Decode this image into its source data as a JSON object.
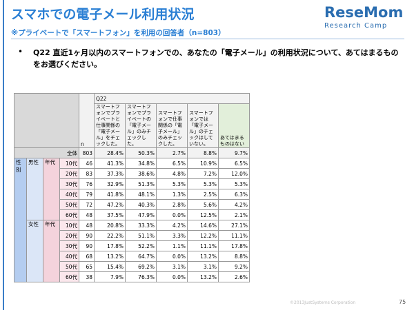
{
  "header": {
    "title": "スマホでの電子メール利用状況",
    "subtitle": "※プライベートで「スマートフォン」を利用の回答者（n=803）",
    "logo_main": "ResеMom",
    "logo_sub": "Research Camp"
  },
  "question": "Q22 直近1ヶ月以内のスマートフォンでの、あなたの「電子メール」の利用状況について、あてはまるものをお選びください。",
  "table": {
    "q_label": "Q22",
    "n_label": "n",
    "columns": [
      "スマートフォンでプライベートと仕事関係の「電子メール」をチェックした。",
      "スマートフォンでプライベートの「電子メール」のみチェックした。",
      "スマートフォンで仕事関係の「電子メール」のみチェックした。",
      "スマートフォンでは「電子メール」のチェックはしていない。",
      "あてはまるものはない"
    ],
    "total": [
      "全体",
      "803",
      "28.4%",
      "50.3%",
      "2.7%",
      "8.8%",
      "9.7%"
    ],
    "sex_label": "性別",
    "groups": [
      {
        "gender": "男性",
        "age_label": "年代",
        "rows": [
          [
            "10代",
            "46",
            "41.3%",
            "34.8%",
            "6.5%",
            "10.9%",
            "6.5%"
          ],
          [
            "20代",
            "83",
            "37.3%",
            "38.6%",
            "4.8%",
            "7.2%",
            "12.0%"
          ],
          [
            "30代",
            "76",
            "32.9%",
            "51.3%",
            "5.3%",
            "5.3%",
            "5.3%"
          ],
          [
            "40代",
            "79",
            "41.8%",
            "48.1%",
            "1.3%",
            "2.5%",
            "6.3%"
          ],
          [
            "50代",
            "72",
            "47.2%",
            "40.3%",
            "2.8%",
            "5.6%",
            "4.2%"
          ],
          [
            "60代",
            "48",
            "37.5%",
            "47.9%",
            "0.0%",
            "12.5%",
            "2.1%"
          ]
        ]
      },
      {
        "gender": "女性",
        "age_label": "年代",
        "rows": [
          [
            "10代",
            "48",
            "20.8%",
            "33.3%",
            "4.2%",
            "14.6%",
            "27.1%"
          ],
          [
            "20代",
            "90",
            "22.2%",
            "51.1%",
            "3.3%",
            "12.2%",
            "11.1%"
          ],
          [
            "30代",
            "90",
            "17.8%",
            "52.2%",
            "1.1%",
            "11.1%",
            "17.8%"
          ],
          [
            "40代",
            "68",
            "13.2%",
            "64.7%",
            "0.0%",
            "13.2%",
            "8.8%"
          ],
          [
            "50代",
            "65",
            "15.4%",
            "69.2%",
            "3.1%",
            "3.1%",
            "9.2%"
          ],
          [
            "60代",
            "38",
            "7.9%",
            "76.3%",
            "0.0%",
            "13.2%",
            "2.6%"
          ]
        ]
      }
    ]
  },
  "footer": {
    "copyright": "©2013JustSystems Corporation",
    "page": "75"
  }
}
